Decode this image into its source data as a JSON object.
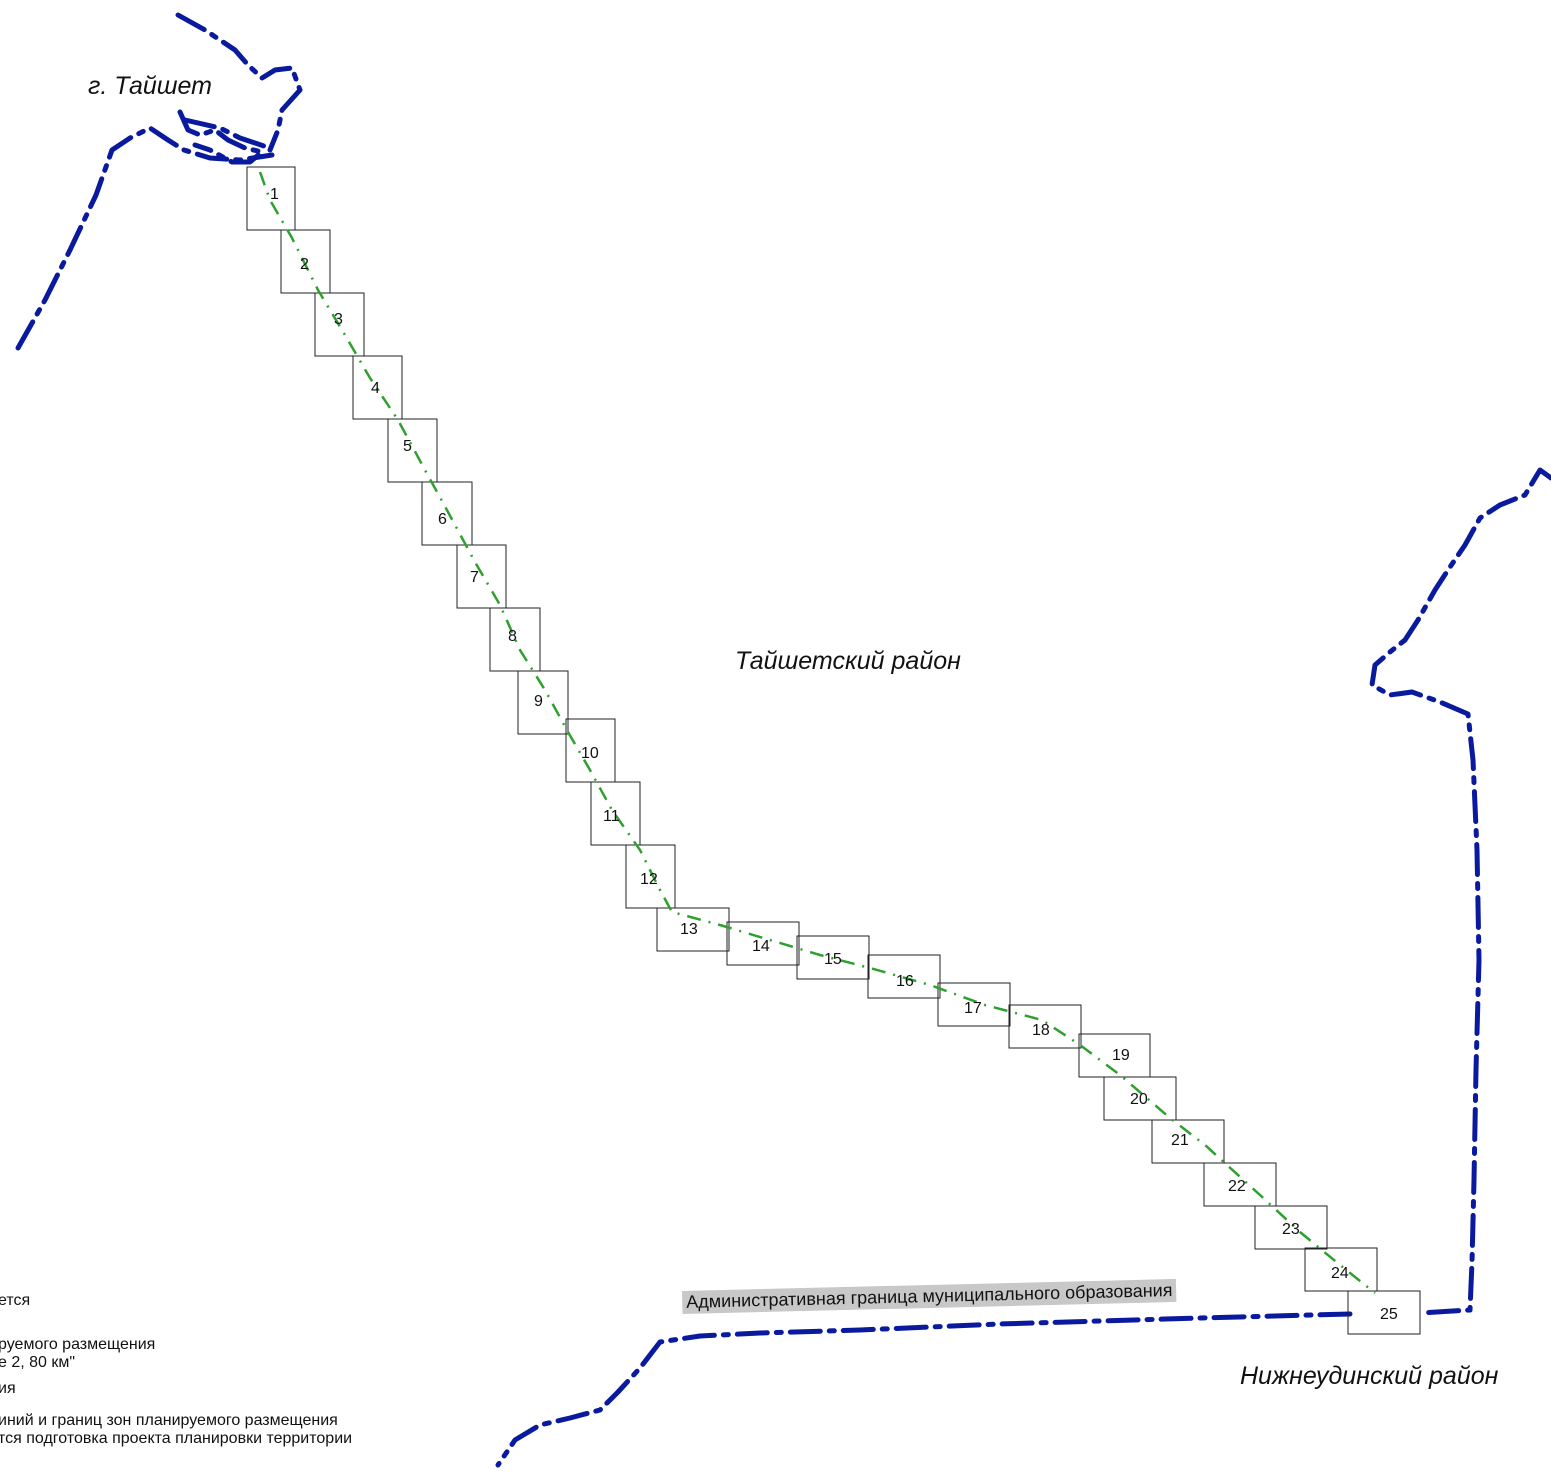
{
  "map": {
    "labels": {
      "city": "г. Тайшет",
      "district": "Тайшетский район",
      "neighbor_district": "Нижнеудинский район",
      "boundary": "Административная граница муниципального образования"
    },
    "legend_fragments": [
      "ется",
      "руемого размещения",
      "е 2, 80 км\"",
      "ия",
      "иний и границ зон планируемого размещения",
      "тся подготовка проекта планировки территории"
    ],
    "sheets": [
      "1",
      "2",
      "3",
      "4",
      "5",
      "6",
      "7",
      "8",
      "9",
      "10",
      "11",
      "12",
      "13",
      "14",
      "15",
      "16",
      "17",
      "18",
      "19",
      "20",
      "21",
      "22",
      "23",
      "24",
      "25"
    ],
    "colors": {
      "admin_boundary": "#0a1a9e",
      "route_line": "#2ea02e",
      "sheet_frame": "#222222",
      "label_highlight": "#c8c8c8"
    }
  }
}
